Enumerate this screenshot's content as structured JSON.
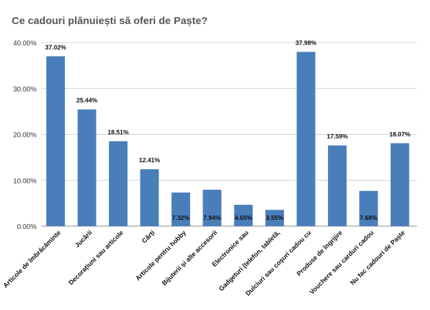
{
  "chart_data": {
    "type": "bar",
    "title": "Ce cadouri plănuiești să oferi de Paște?",
    "xlabel": "",
    "ylabel": "",
    "ylim": [
      0,
      40
    ],
    "yticks": [
      "0.00%",
      "10.00%",
      "20.00%",
      "30.00%",
      "40.00%"
    ],
    "grid": true,
    "bar_color": "#4a7ebb",
    "categories": [
      "Articole de îmbrăcăminte",
      "Jucării",
      "Decorațiuni sau articole",
      "Cărți",
      "Articole pentru hobby",
      "Bijuterii și alte accesorii",
      "Electronice sau",
      "Gadgeturi (telefon, tabletă,",
      "Dulciuri sau coșuri cadou cu",
      "Produse de îngrijire",
      "Vouchere sau carduri cadou",
      "Nu fac cadouri de Paște"
    ],
    "values": [
      37.02,
      25.44,
      18.51,
      12.41,
      7.32,
      7.94,
      4.65,
      3.55,
      37.98,
      17.59,
      7.68,
      18.07
    ],
    "data_labels": [
      "37.02%",
      "25.44%",
      "18.51%",
      "12.41%",
      "7.32%",
      "7.94%",
      "4.65%",
      "3.55%",
      "37.98%",
      "17.59%",
      "7.68%",
      "18.07%"
    ]
  }
}
